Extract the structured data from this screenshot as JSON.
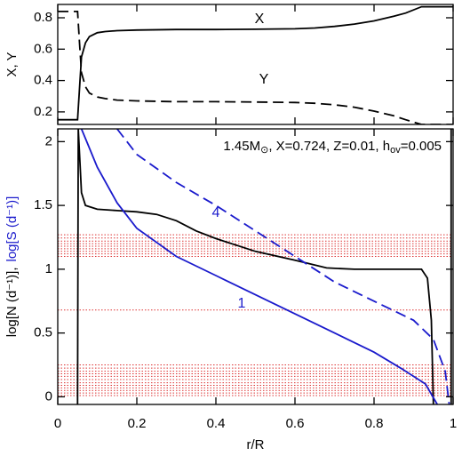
{
  "chart_data": [
    {
      "type": "line",
      "ylabel": "X, Y",
      "xlim": [
        0,
        1
      ],
      "xticks": [
        0,
        0.2,
        0.4,
        0.6,
        0.8,
        1
      ],
      "ylim": [
        0.12,
        0.885
      ],
      "yticks": [
        0.2,
        0.4,
        0.6,
        0.8
      ],
      "series": [
        {
          "label": "X",
          "color": "#000000",
          "dash": false,
          "x": [
            0,
            0.05,
            0.055,
            0.06,
            0.07,
            0.08,
            0.1,
            0.12,
            0.15,
            0.2,
            0.3,
            0.4,
            0.5,
            0.6,
            0.65,
            0.7,
            0.75,
            0.8,
            0.85,
            0.88,
            0.92,
            1
          ],
          "values": [
            0.15,
            0.15,
            0.35,
            0.55,
            0.64,
            0.68,
            0.705,
            0.712,
            0.718,
            0.722,
            0.725,
            0.725,
            0.727,
            0.73,
            0.735,
            0.745,
            0.76,
            0.78,
            0.81,
            0.83,
            0.87,
            0.87
          ]
        },
        {
          "label": "Y",
          "color": "#000000",
          "dash": true,
          "x": [
            0,
            0.05,
            0.055,
            0.06,
            0.07,
            0.08,
            0.1,
            0.12,
            0.15,
            0.2,
            0.3,
            0.4,
            0.5,
            0.6,
            0.65,
            0.7,
            0.75,
            0.8,
            0.85,
            0.88,
            0.92,
            1
          ],
          "values": [
            0.84,
            0.84,
            0.64,
            0.45,
            0.36,
            0.32,
            0.295,
            0.285,
            0.275,
            0.27,
            0.265,
            0.265,
            0.263,
            0.26,
            0.255,
            0.245,
            0.23,
            0.205,
            0.175,
            0.15,
            0.12,
            0.12
          ]
        }
      ]
    },
    {
      "type": "line",
      "xlabel": "r/R",
      "ylabel": [
        "log[N (d⁻¹)],",
        "log[S (d⁻¹)]"
      ],
      "ylabel_colors": [
        "#000000",
        "#1a1acc"
      ],
      "annotation": [
        "1.45M",
        "⊙",
        ", X=0.724, Z=0.01, h",
        "ov",
        "=0.005"
      ],
      "xlim": [
        0,
        1
      ],
      "xticks": [
        0,
        0.2,
        0.4,
        0.6,
        0.8,
        1
      ],
      "ylim": [
        -0.06,
        2.1
      ],
      "yticks": [
        0,
        0.5,
        1,
        1.5,
        2
      ],
      "hlines": {
        "color": "#dd3333",
        "values": [
          1.27,
          1.245,
          1.22,
          1.2,
          1.18,
          1.16,
          1.14,
          1.12,
          1.1,
          0.68,
          0.25,
          0.225,
          0.2,
          0.18,
          0.16,
          0.135,
          0.11,
          0.09,
          0.07,
          0.05,
          0.03,
          0.01
        ]
      },
      "series": [
        {
          "color": "#000000",
          "dash": false,
          "x": [
            0.05,
            0.052,
            0.06,
            0.07,
            0.1,
            0.15,
            0.2,
            0.25,
            0.3,
            0.35,
            0.4,
            0.5,
            0.6,
            0.68,
            0.75,
            0.85,
            0.92,
            0.935,
            0.945,
            0.948,
            0.95,
            null,
            0.995,
            0.995
          ],
          "values": [
            -0.06,
            2.1,
            1.6,
            1.5,
            1.47,
            1.46,
            1.45,
            1.43,
            1.38,
            1.3,
            1.24,
            1.14,
            1.07,
            1.01,
            1.0,
            1.0,
            1.0,
            0.93,
            0.6,
            0.2,
            -0.06,
            null,
            -0.06,
            2.1
          ]
        },
        {
          "label": "1",
          "color": "#1a1acc",
          "dash": false,
          "x": [
            0.06,
            0.08,
            0.1,
            0.15,
            0.2,
            0.3,
            0.4,
            0.5,
            0.6,
            0.7,
            0.8,
            0.87,
            0.93,
            0.96
          ],
          "values": [
            2.1,
            1.95,
            1.8,
            1.52,
            1.32,
            1.1,
            0.95,
            0.8,
            0.65,
            0.5,
            0.35,
            0.22,
            0.1,
            -0.06
          ]
        },
        {
          "label": "4",
          "color": "#1a1acc",
          "dash": true,
          "x": [
            0.15,
            0.2,
            0.3,
            0.4,
            0.5,
            0.6,
            0.7,
            0.8,
            0.9,
            0.95,
            0.98,
            0.99
          ],
          "values": [
            2.1,
            1.9,
            1.68,
            1.5,
            1.3,
            1.1,
            0.9,
            0.75,
            0.6,
            0.45,
            0.2,
            -0.06
          ]
        }
      ]
    }
  ]
}
